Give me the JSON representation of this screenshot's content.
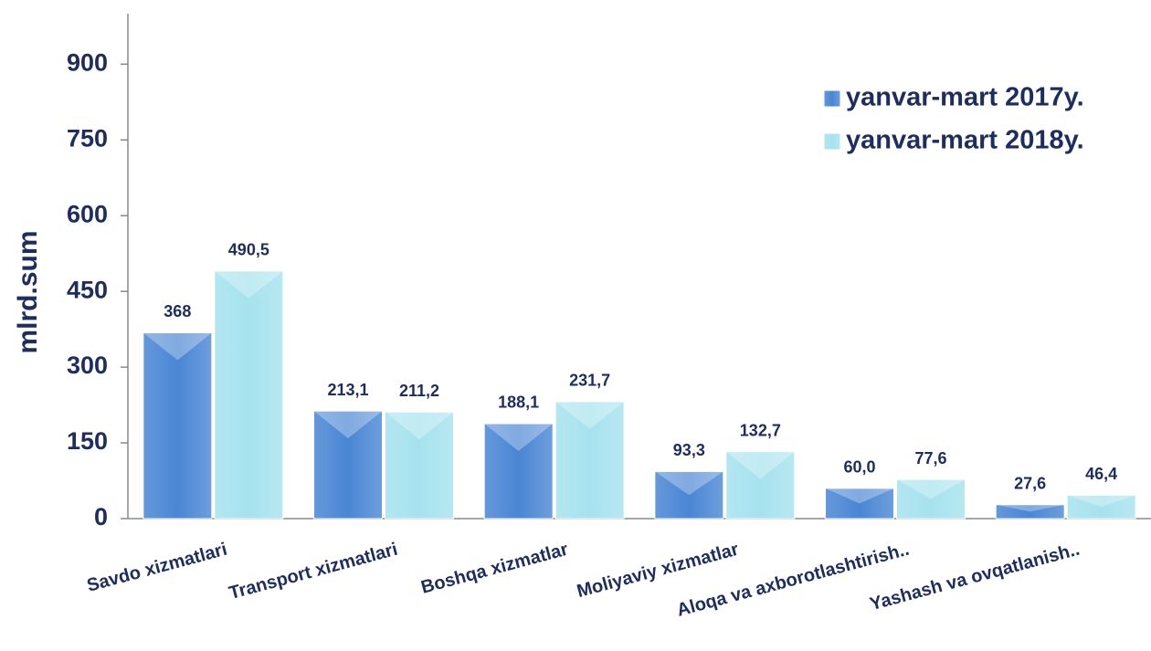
{
  "chart_data": {
    "type": "bar",
    "y_label": "mlrd.sum",
    "categories": [
      "Savdo xizmatlari",
      "Transport xizmatlari",
      "Boshqa xizmatlar",
      "Moliyaviy xizmatlar",
      "Aloqa va axborotlashtirish..",
      "Yashash va ovqatlanish.."
    ],
    "series": [
      {
        "name": "yanvar-mart 2017y.",
        "color": "#4a86d4",
        "values": [
          368,
          213.1,
          188.1,
          93.3,
          60.0,
          27.6
        ],
        "value_labels": [
          "368",
          "213,1",
          "188,1",
          "93,3",
          "60,0",
          "27,6"
        ]
      },
      {
        "name": "yanvar-mart 2018y.",
        "color": "#a6e2ee",
        "values": [
          490.5,
          211.2,
          231.7,
          132.7,
          77.6,
          46.4
        ],
        "value_labels": [
          "490,5",
          "211,2",
          "231,7",
          "132,7",
          "77,6",
          "46,4"
        ]
      }
    ],
    "ylim": [
      0,
      1000
    ],
    "yticks": [
      0,
      150,
      300,
      450,
      600,
      750,
      900
    ],
    "grid": false,
    "legend": "top-right"
  }
}
